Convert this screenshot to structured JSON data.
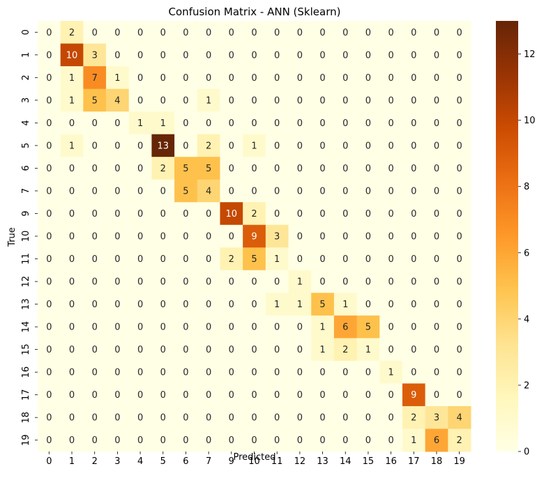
{
  "chart_data": {
    "type": "heatmap",
    "title": "Confusion Matrix - ANN (Sklearn)",
    "xlabel": "Predicted",
    "ylabel": "True",
    "x_categories": [
      "0",
      "1",
      "2",
      "3",
      "4",
      "5",
      "6",
      "7",
      "9",
      "10",
      "11",
      "12",
      "13",
      "14",
      "15",
      "16",
      "17",
      "18",
      "19"
    ],
    "y_categories": [
      "0",
      "1",
      "2",
      "3",
      "4",
      "5",
      "6",
      "7",
      "9",
      "10",
      "11",
      "12",
      "13",
      "14",
      "15",
      "16",
      "17",
      "18",
      "19"
    ],
    "values": [
      [
        0,
        2,
        0,
        0,
        0,
        0,
        0,
        0,
        0,
        0,
        0,
        0,
        0,
        0,
        0,
        0,
        0,
        0,
        0
      ],
      [
        0,
        10,
        3,
        0,
        0,
        0,
        0,
        0,
        0,
        0,
        0,
        0,
        0,
        0,
        0,
        0,
        0,
        0,
        0
      ],
      [
        0,
        1,
        7,
        1,
        0,
        0,
        0,
        0,
        0,
        0,
        0,
        0,
        0,
        0,
        0,
        0,
        0,
        0,
        0
      ],
      [
        0,
        1,
        5,
        4,
        0,
        0,
        0,
        1,
        0,
        0,
        0,
        0,
        0,
        0,
        0,
        0,
        0,
        0,
        0
      ],
      [
        0,
        0,
        0,
        0,
        1,
        1,
        0,
        0,
        0,
        0,
        0,
        0,
        0,
        0,
        0,
        0,
        0,
        0,
        0
      ],
      [
        0,
        1,
        0,
        0,
        0,
        13,
        0,
        2,
        0,
        1,
        0,
        0,
        0,
        0,
        0,
        0,
        0,
        0,
        0
      ],
      [
        0,
        0,
        0,
        0,
        0,
        2,
        5,
        5,
        0,
        0,
        0,
        0,
        0,
        0,
        0,
        0,
        0,
        0,
        0
      ],
      [
        0,
        0,
        0,
        0,
        0,
        0,
        5,
        4,
        0,
        0,
        0,
        0,
        0,
        0,
        0,
        0,
        0,
        0,
        0
      ],
      [
        0,
        0,
        0,
        0,
        0,
        0,
        0,
        0,
        10,
        2,
        0,
        0,
        0,
        0,
        0,
        0,
        0,
        0,
        0
      ],
      [
        0,
        0,
        0,
        0,
        0,
        0,
        0,
        0,
        0,
        9,
        3,
        0,
        0,
        0,
        0,
        0,
        0,
        0,
        0
      ],
      [
        0,
        0,
        0,
        0,
        0,
        0,
        0,
        0,
        2,
        5,
        1,
        0,
        0,
        0,
        0,
        0,
        0,
        0,
        0
      ],
      [
        0,
        0,
        0,
        0,
        0,
        0,
        0,
        0,
        0,
        0,
        0,
        1,
        0,
        0,
        0,
        0,
        0,
        0,
        0
      ],
      [
        0,
        0,
        0,
        0,
        0,
        0,
        0,
        0,
        0,
        0,
        1,
        1,
        5,
        1,
        0,
        0,
        0,
        0,
        0
      ],
      [
        0,
        0,
        0,
        0,
        0,
        0,
        0,
        0,
        0,
        0,
        0,
        0,
        1,
        6,
        5,
        0,
        0,
        0,
        0
      ],
      [
        0,
        0,
        0,
        0,
        0,
        0,
        0,
        0,
        0,
        0,
        0,
        0,
        1,
        2,
        1,
        0,
        0,
        0,
        0
      ],
      [
        0,
        0,
        0,
        0,
        0,
        0,
        0,
        0,
        0,
        0,
        0,
        0,
        0,
        0,
        0,
        1,
        0,
        0,
        0
      ],
      [
        0,
        0,
        0,
        0,
        0,
        0,
        0,
        0,
        0,
        0,
        0,
        0,
        0,
        0,
        0,
        0,
        9,
        0,
        0
      ],
      [
        0,
        0,
        0,
        0,
        0,
        0,
        0,
        0,
        0,
        0,
        0,
        0,
        0,
        0,
        0,
        0,
        2,
        3,
        4
      ],
      [
        0,
        0,
        0,
        0,
        0,
        0,
        0,
        0,
        0,
        0,
        0,
        0,
        0,
        0,
        0,
        0,
        1,
        6,
        2
      ]
    ],
    "colormap": "YlOrBr",
    "colormap_stops": [
      "#ffffe5",
      "#fff7bc",
      "#fee391",
      "#fec44f",
      "#fe9929",
      "#ec7014",
      "#cc4c02",
      "#993404",
      "#662506"
    ],
    "vmin": 0,
    "vmax": 13,
    "colorbar_ticks": [
      0,
      2,
      4,
      6,
      8,
      10,
      12
    ],
    "grid": false,
    "legend": "colorbar-right"
  }
}
